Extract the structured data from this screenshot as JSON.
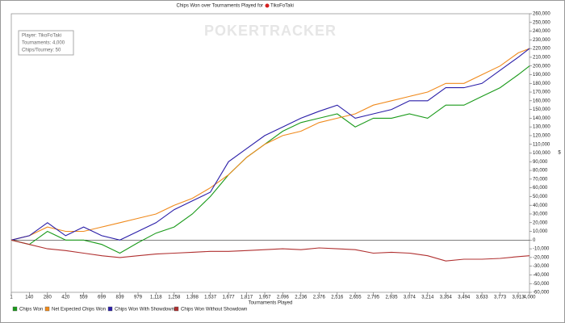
{
  "chart_data": {
    "type": "line",
    "title": "Chips Won over Tournaments Played for",
    "player": "TikoFoTaki",
    "info": [
      "Player: TikoFoTaki",
      "Tournaments: 4,000",
      "Chips/Tourney: 50"
    ],
    "watermark": "POKERTRACKER",
    "x_label": "Tournaments Played",
    "y_label": "$",
    "x": [
      1,
      140,
      280,
      420,
      559,
      699,
      839,
      979,
      1118,
      1258,
      1398,
      1537,
      1677,
      1817,
      1957,
      2096,
      2236,
      2376,
      2516,
      2655,
      2795,
      2935,
      3074,
      3214,
      3354,
      3494,
      3633,
      3773,
      3913,
      4000
    ],
    "series": [
      {
        "name": "Chips Won",
        "color": "#1a9a1a",
        "values": [
          0,
          -5000,
          10000,
          0,
          0,
          -5000,
          -15000,
          -3000,
          8000,
          15000,
          30000,
          50000,
          75000,
          95000,
          110000,
          125000,
          135000,
          140000,
          145000,
          130000,
          140000,
          140000,
          145000,
          140000,
          155000,
          155000,
          165000,
          175000,
          190000,
          200000
        ]
      },
      {
        "name": "Net Expected Chips Won",
        "color": "#f08a1c",
        "values": [
          0,
          5000,
          15000,
          10000,
          10000,
          15000,
          20000,
          25000,
          30000,
          40000,
          48000,
          60000,
          75000,
          95000,
          110000,
          120000,
          125000,
          135000,
          140000,
          145000,
          155000,
          160000,
          165000,
          170000,
          180000,
          180000,
          190000,
          200000,
          215000,
          220000
        ]
      },
      {
        "name": "Chips Won With Showdown",
        "color": "#2a1ea8",
        "values": [
          0,
          5000,
          20000,
          5000,
          15000,
          5000,
          0,
          10000,
          20000,
          35000,
          45000,
          55000,
          90000,
          105000,
          120000,
          130000,
          140000,
          148000,
          155000,
          140000,
          145000,
          150000,
          160000,
          160000,
          175000,
          175000,
          180000,
          195000,
          210000,
          220000
        ]
      },
      {
        "name": "Chips Won Without Showdown",
        "color": "#b03030",
        "values": [
          0,
          -5000,
          -10000,
          -12000,
          -15000,
          -18000,
          -20000,
          -18000,
          -16000,
          -15000,
          -14000,
          -13000,
          -13000,
          -12000,
          -11000,
          -10000,
          -11000,
          -9000,
          -10000,
          -11000,
          -15000,
          -14000,
          -15000,
          -18000,
          -24000,
          -22000,
          -22000,
          -21000,
          -19000,
          -18000
        ]
      }
    ],
    "xlim": [
      1,
      4000
    ],
    "xticks": [
      1,
      140,
      280,
      420,
      559,
      699,
      839,
      979,
      {
        "value": 1118,
        "label": "1,118"
      },
      {
        "value": 1258,
        "label": "1,258"
      },
      {
        "value": 1398,
        "label": "1,398"
      },
      {
        "value": 1537,
        "label": "1,537"
      },
      {
        "value": 1677,
        "label": "1,677"
      },
      {
        "value": 1817,
        "label": "1,817"
      },
      {
        "value": 1957,
        "label": "1,957"
      },
      {
        "value": 2096,
        "label": "2,096"
      },
      {
        "value": 2236,
        "label": "2,236"
      },
      {
        "value": 2376,
        "label": "2,376"
      },
      {
        "value": 2516,
        "label": "2,516"
      },
      {
        "value": 2655,
        "label": "2,655"
      },
      {
        "value": 2795,
        "label": "2,795"
      },
      {
        "value": 2935,
        "label": "2,935"
      },
      {
        "value": 3074,
        "label": "3,074"
      },
      {
        "value": 3214,
        "label": "3,214"
      },
      {
        "value": 3354,
        "label": "3,354"
      },
      {
        "value": 3494,
        "label": "3,494"
      },
      {
        "value": 3633,
        "label": "3,633"
      },
      {
        "value": 3773,
        "label": "3,773"
      },
      {
        "value": 3913,
        "label": "3,913"
      },
      {
        "value": 4000,
        "label": "4,000"
      }
    ],
    "ylim": [
      -60000,
      260000
    ],
    "yticks": [
      {
        "value": -60000,
        "label": "-60,000"
      },
      {
        "value": -50000,
        "label": "-50,000"
      },
      {
        "value": -40000,
        "label": "-40,000"
      },
      {
        "value": -30000,
        "label": "-30,000"
      },
      {
        "value": -20000,
        "label": "-20,000"
      },
      {
        "value": -10000,
        "label": "-10,000"
      },
      0,
      {
        "value": 10000,
        "label": "10,000"
      },
      {
        "value": 20000,
        "label": "20,000"
      },
      {
        "value": 30000,
        "label": "30,000"
      },
      {
        "value": 40000,
        "label": "40,000"
      },
      {
        "value": 50000,
        "label": "50,000"
      },
      {
        "value": 60000,
        "label": "60,000"
      },
      {
        "value": 70000,
        "label": "70,000"
      },
      {
        "value": 80000,
        "label": "80,000"
      },
      {
        "value": 90000,
        "label": "90,000"
      },
      {
        "value": 100000,
        "label": "100,000"
      },
      {
        "value": 110000,
        "label": "110,000"
      },
      {
        "value": 120000,
        "label": "120,000"
      },
      {
        "value": 130000,
        "label": "130,000"
      },
      {
        "value": 140000,
        "label": "140,000"
      },
      {
        "value": 150000,
        "label": "150,000"
      },
      {
        "value": 160000,
        "label": "160,000"
      },
      {
        "value": 170000,
        "label": "170,000"
      },
      {
        "value": 180000,
        "label": "180,000"
      },
      {
        "value": 190000,
        "label": "190,000"
      },
      {
        "value": 200000,
        "label": "200,000"
      },
      {
        "value": 210000,
        "label": "210,000"
      },
      {
        "value": 220000,
        "label": "220,000"
      },
      {
        "value": 230000,
        "label": "230,000"
      },
      {
        "value": 240000,
        "label": "240,000"
      },
      {
        "value": 250000,
        "label": "250,000"
      },
      {
        "value": 260000,
        "label": "260,000"
      }
    ],
    "grid": false,
    "legend": "bottom"
  }
}
